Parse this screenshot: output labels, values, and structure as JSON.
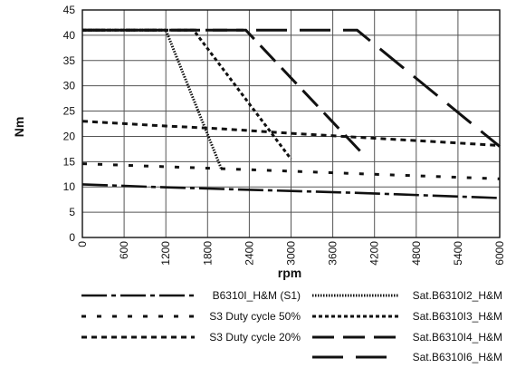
{
  "chart_data": {
    "type": "line",
    "xlabel": "rpm",
    "ylabel": "Nm",
    "xlim": [
      0,
      6000
    ],
    "ylim": [
      0,
      45
    ],
    "x_ticks": [
      0,
      600,
      1200,
      1800,
      2400,
      3000,
      3600,
      4200,
      4800,
      5400,
      6000
    ],
    "y_ticks": [
      0,
      5,
      10,
      15,
      20,
      25,
      30,
      35,
      40,
      45
    ],
    "grid": true,
    "legend_position": "bottom",
    "series": [
      {
        "name": "B6310I_H&M (S1)",
        "dash": "dashdot",
        "x": [
          0,
          1000,
          2000,
          3000,
          4000,
          5000,
          6000
        ],
        "y": [
          10.5,
          10.0,
          9.6,
          9.2,
          8.8,
          8.3,
          7.8
        ]
      },
      {
        "name": "S3 Duty cycle 50%",
        "dash": "sparse",
        "x": [
          0,
          1000,
          2000,
          3000,
          4000,
          5000,
          6000
        ],
        "y": [
          14.6,
          14.1,
          13.6,
          13.1,
          12.6,
          12.1,
          11.6
        ]
      },
      {
        "name": "S3 Duty cycle 20%",
        "dash": "medium",
        "x": [
          0,
          1000,
          2000,
          3000,
          4000,
          5000,
          6000
        ],
        "y": [
          23.0,
          22.2,
          21.5,
          20.6,
          19.8,
          19.0,
          18.2
        ]
      },
      {
        "name": "Sat.B6310I2_H&M",
        "dash": "dotted",
        "x": [
          0,
          1200,
          2000
        ],
        "y": [
          41,
          41,
          13.5
        ]
      },
      {
        "name": "Sat.B6310I3_H&M",
        "dash": "fine",
        "x": [
          0,
          1600,
          3000
        ],
        "y": [
          41,
          41,
          15.5
        ]
      },
      {
        "name": "Sat.B6310I4_H&M",
        "dash": "long",
        "x": [
          0,
          2350,
          4000
        ],
        "y": [
          41,
          41,
          17
        ]
      },
      {
        "name": "Sat.B6310I6_H&M",
        "dash": "longest",
        "x": [
          0,
          3950,
          6000
        ],
        "y": [
          41,
          41,
          18
        ]
      }
    ]
  }
}
